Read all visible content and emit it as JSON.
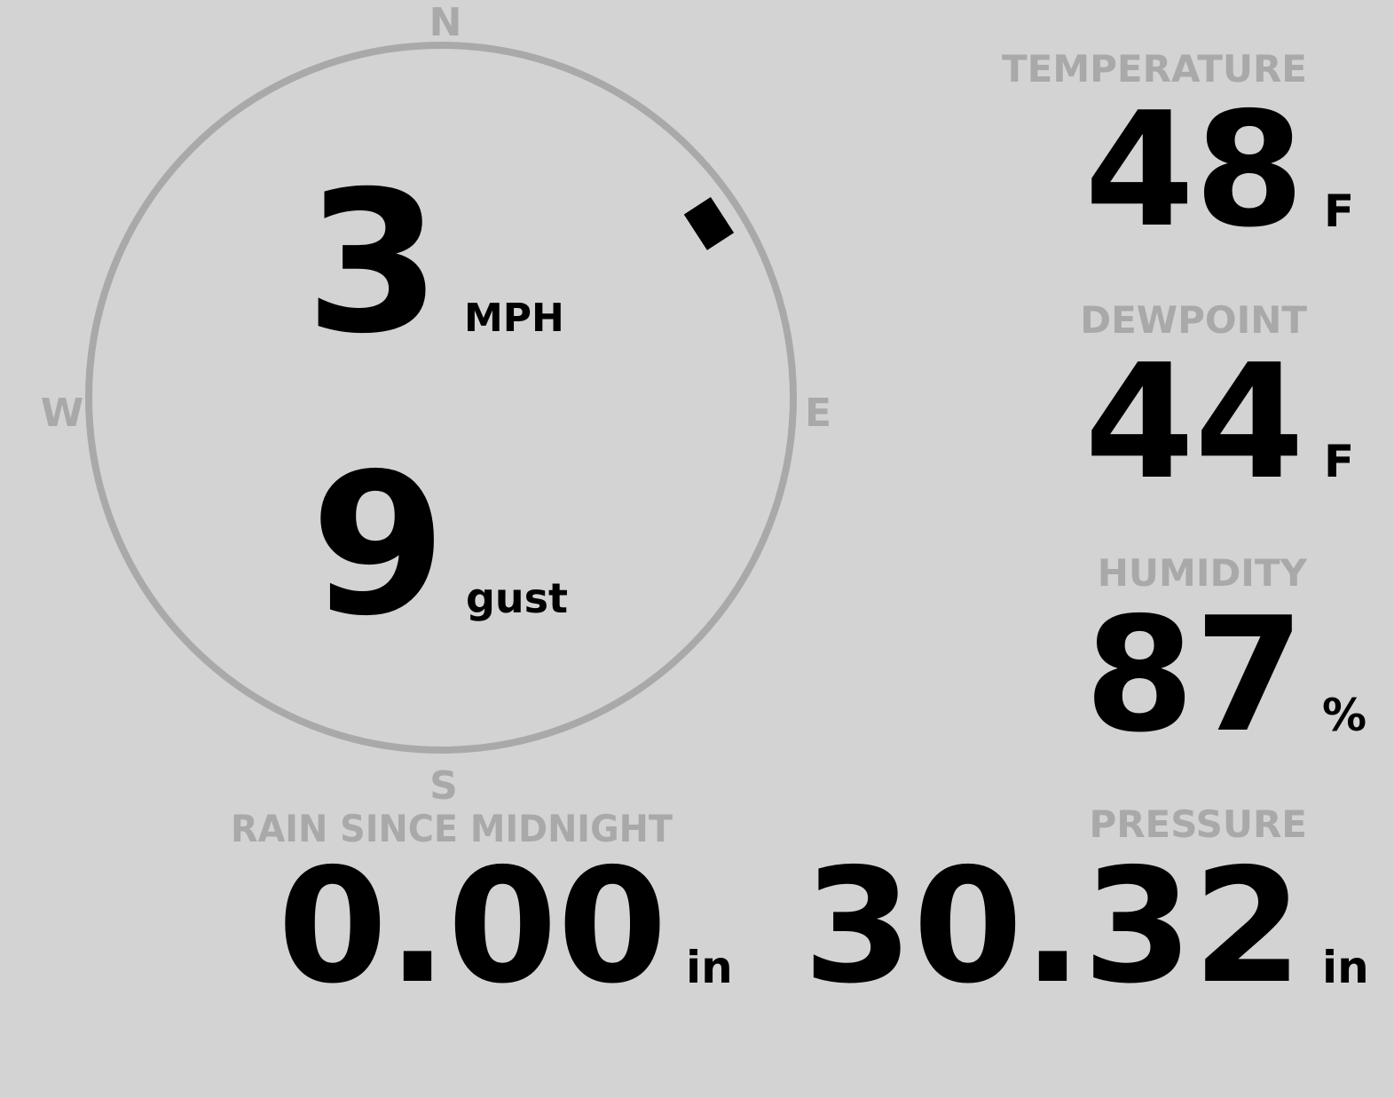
{
  "compass": {
    "north": "N",
    "east": "E",
    "south": "S",
    "west": "W"
  },
  "wind": {
    "direction": 57,
    "speed": "3",
    "speed_unit": "MPH",
    "gust": "9",
    "gust_unit": "gust"
  },
  "temperature": {
    "label": "TEMPERATURE",
    "value": "48",
    "unit": "F"
  },
  "dewpoint": {
    "label": "DEWPOINT",
    "value": "44",
    "unit": "F"
  },
  "humidity": {
    "label": "HUMIDITY",
    "value": "87",
    "unit": "%"
  },
  "rain": {
    "label": "RAIN SINCE MIDNIGHT",
    "value": "0.00",
    "unit": "in"
  },
  "pressure": {
    "label": "PRESSURE",
    "value": "30.32",
    "unit": "in"
  }
}
